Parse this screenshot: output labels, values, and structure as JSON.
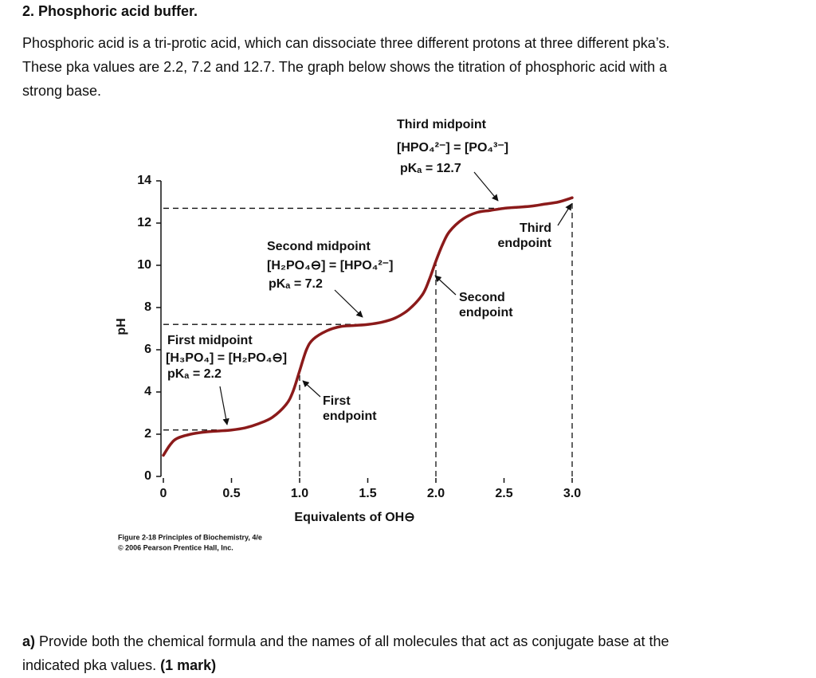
{
  "header": {
    "title": "2. Phosphoric acid buffer."
  },
  "intro": {
    "lines": [
      "Phosphoric acid is a tri-protic acid, which can dissociate three different protons at three different pka’s.",
      "These pka values are 2.2, 7.2 and 12.7. The graph below shows the titration of phosphoric acid with a",
      "strong base."
    ]
  },
  "figure": {
    "chart_data": {
      "type": "line",
      "x_label": "Equivalents of OH⊖",
      "y_label": "pH",
      "x": [
        0,
        0.05,
        0.1,
        0.2,
        0.3,
        0.4,
        0.5,
        0.6,
        0.7,
        0.8,
        0.9,
        0.95,
        1.0,
        1.05,
        1.1,
        1.2,
        1.3,
        1.4,
        1.5,
        1.6,
        1.7,
        1.8,
        1.9,
        1.95,
        2.0,
        2.05,
        2.1,
        2.2,
        2.3,
        2.4,
        2.5,
        2.6,
        2.7,
        2.8,
        2.9,
        3.0
      ],
      "series": [
        {
          "color": "#8b1a1a",
          "values": [
            1.0,
            1.5,
            1.8,
            2.0,
            2.1,
            2.15,
            2.2,
            2.3,
            2.5,
            2.8,
            3.4,
            4.0,
            5.0,
            6.0,
            6.5,
            6.9,
            7.1,
            7.15,
            7.2,
            7.3,
            7.5,
            7.9,
            8.6,
            9.3,
            10.2,
            11.0,
            11.6,
            12.2,
            12.5,
            12.6,
            12.7,
            12.75,
            12.8,
            12.9,
            13.0,
            13.2
          ]
        }
      ],
      "xlim": [
        0,
        3
      ],
      "ylim": [
        0,
        14
      ],
      "xticks": [
        0,
        0.5,
        {
          "value": 1,
          "label": "1.0"
        },
        1.5,
        {
          "value": 2,
          "label": "2.0"
        },
        2.5,
        {
          "value": 3,
          "label": "3.0"
        }
      ],
      "yticks": [
        0,
        2,
        4,
        6,
        8,
        10,
        12,
        14
      ],
      "midpoints": [
        {
          "name": "First midpoint",
          "formula": "[H₃PO₄] = [H₂PO₄⊖]",
          "label": "pKₐ = 2.2",
          "x": 0.5,
          "value": 2.2
        },
        {
          "name": "Second midpoint",
          "formula": "[H₂PO₄⊖] = [HPO₄²⁻]",
          "label": "pKₐ = 7.2",
          "x": 1.5,
          "value": 7.2
        },
        {
          "name": "Third midpoint",
          "formula": "[HPO₄²⁻] = [PO₄³⁻]",
          "label": "pKₐ = 12.7",
          "x": 2.5,
          "value": 12.7
        }
      ],
      "endpoints": [
        {
          "name": "First endpoint",
          "x": 1
        },
        {
          "name": "Second endpoint",
          "x": 2
        },
        {
          "name": "Third endpoint",
          "x": 3
        }
      ]
    },
    "caption": [
      "Figure 2-18 Principles of Biochemistry, 4/e",
      "© 2006 Pearson Prentice Hall, Inc."
    ]
  },
  "question": {
    "label": "a)",
    "lines": [
      "Provide both the chemical formula and the names of all molecules that act as conjugate base at the",
      "indicated pka values."
    ],
    "mark": "(1 mark)"
  }
}
